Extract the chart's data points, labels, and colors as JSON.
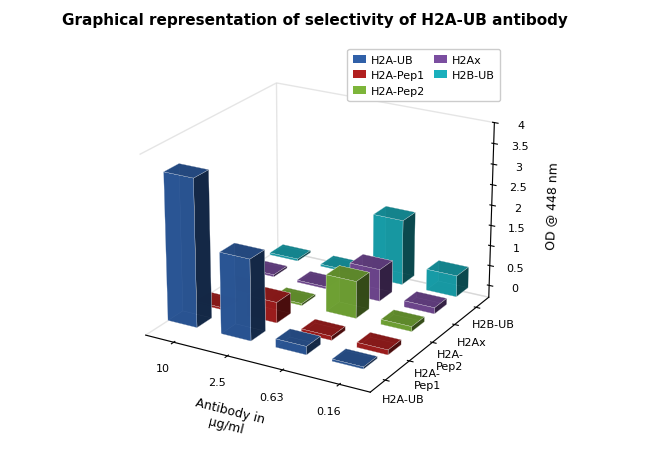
{
  "title": "Graphical representation of selectivity of H2A-UB antibody",
  "zlabel": "OD @ 448 nm",
  "xlabel": "Antibody in\nμg/ml",
  "ylim": [
    0,
    4
  ],
  "zticks": [
    0,
    0.5,
    1,
    1.5,
    2,
    2.5,
    3,
    3.5,
    4
  ],
  "antigens": [
    "H2A-UB",
    "H2A-\nPep1",
    "H2A-\nPep2",
    "H2Ax",
    "H2B-UB"
  ],
  "antigen_labels": [
    "H2A-UB",
    "H2A-\nPep1",
    "H2A-\nPep2",
    "H2Ax",
    "H2B-UB"
  ],
  "concentrations": [
    "10",
    "2.5",
    "0.63",
    "0.16"
  ],
  "colors": {
    "H2A-UB": "#3060A8",
    "H2A-Pep1": "#B22020",
    "H2A-Pep2": "#7DB53A",
    "H2Ax": "#7B4EA0",
    "H2B-UB": "#1AAFBC"
  },
  "legend": [
    {
      "label": "H2A-UB",
      "color": "#3060A8"
    },
    {
      "label": "H2A-Pep1",
      "color": "#B22020"
    },
    {
      "label": "H2A-Pep2",
      "color": "#7DB53A"
    },
    {
      "label": "H2Ax",
      "color": "#7B4EA0"
    },
    {
      "label": "H2B-UB",
      "color": "#1AAFBC"
    }
  ],
  "data": {
    "H2A-UB": [
      3.55,
      1.95,
      0.2,
      0.05
    ],
    "H2A-Pep1": [
      0.05,
      0.5,
      -0.1,
      -0.12
    ],
    "H2A-Pep2": [
      0.05,
      0.05,
      0.9,
      0.12
    ],
    "H2Ax": [
      0.05,
      0.05,
      0.78,
      0.15
    ],
    "H2B-UB": [
      0.05,
      0.05,
      1.6,
      0.52
    ]
  },
  "background_color": "#ffffff",
  "title_fontsize": 11,
  "axis_fontsize": 9,
  "tick_fontsize": 8,
  "bar_width": 0.55,
  "bar_depth": 0.55,
  "elev": 22,
  "azim": -60
}
